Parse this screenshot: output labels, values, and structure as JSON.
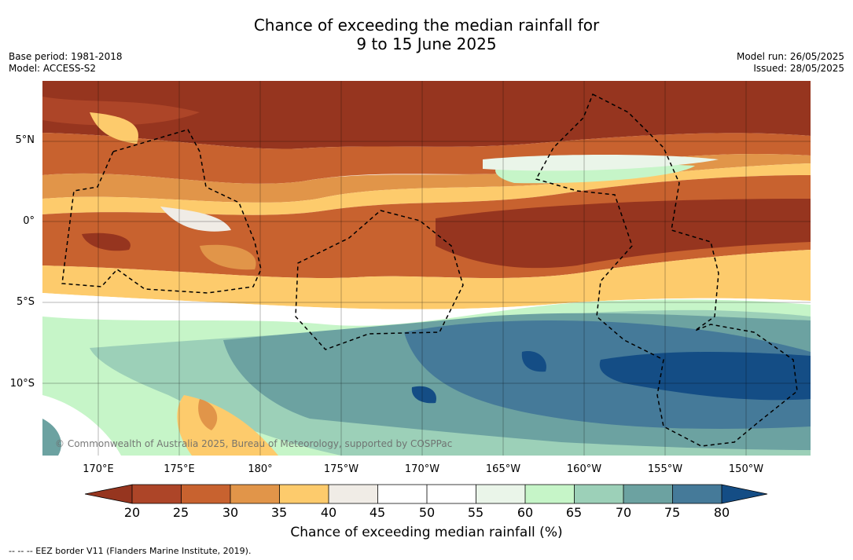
{
  "title": {
    "line1": "Chance of exceeding the median rainfall for",
    "line2": "9 to 15 June 2025"
  },
  "meta": {
    "base_period": "Base period: 1981-2018",
    "model": "Model: ACCESS-S2",
    "model_run": "Model run: 26/05/2025",
    "issued": "Issued: 28/05/2025"
  },
  "map": {
    "copyright": "© Commonwealth of Australia 2025, Bureau of Meteorology, supported by COSPPac",
    "lat_labels": [
      "5°N",
      "0°",
      "5°S",
      "10°S"
    ],
    "lon_labels": [
      "170°E",
      "175°E",
      "180°",
      "175°W",
      "170°W",
      "165°W",
      "160°W",
      "155°W",
      "150°W"
    ]
  },
  "colorbar": {
    "title": "Chance of exceeding median rainfall (%)",
    "ticks": [
      "20",
      "25",
      "30",
      "35",
      "40",
      "45",
      "50",
      "55",
      "60",
      "65",
      "70",
      "75",
      "80"
    ],
    "colors": {
      "under": "#96351f",
      "bins": [
        "#ad4528",
        "#c8622f",
        "#e19549",
        "#fdcb6c",
        "#f0ece6",
        "#ffffff",
        "#ffffff",
        "#eaf5e9",
        "#c6f5c8",
        "#9cd0b8",
        "#6ca2a1",
        "#457a99"
      ],
      "over": "#144d85"
    }
  },
  "footer": {
    "legend": "--  --  -- EEZ border V11 (Flanders Marine Institute, 2019)."
  }
}
